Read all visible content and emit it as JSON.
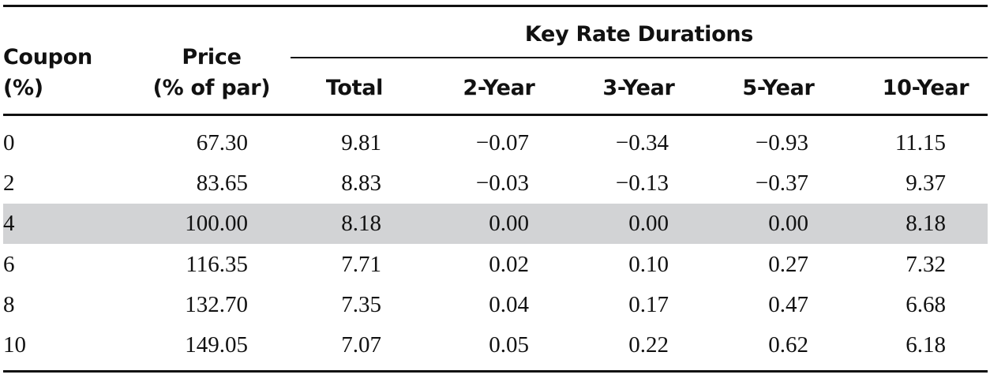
{
  "table": {
    "group_header": "Key Rate Durations",
    "columns": {
      "coupon": [
        "Coupon",
        "(%)"
      ],
      "price": [
        "Price",
        "(% of par)"
      ],
      "total": "Total",
      "y2": "2-Year",
      "y3": "3-Year",
      "y5": "5-Year",
      "y10": "10-Year"
    },
    "highlighted_row": 2,
    "highlight_color": "#d2d3d5",
    "rows": [
      {
        "coupon": "0",
        "price": "67.30",
        "total": "9.81",
        "y2": "−0.07",
        "y3": "−0.34",
        "y5": "−0.93",
        "y10": "11.15"
      },
      {
        "coupon": "2",
        "price": "83.65",
        "total": "8.83",
        "y2": "−0.03",
        "y3": "−0.13",
        "y5": "−0.37",
        "y10": "9.37"
      },
      {
        "coupon": "4",
        "price": "100.00",
        "total": "8.18",
        "y2": "0.00",
        "y3": "0.00",
        "y5": "0.00",
        "y10": "8.18"
      },
      {
        "coupon": "6",
        "price": "116.35",
        "total": "7.71",
        "y2": "0.02",
        "y3": "0.10",
        "y5": "0.27",
        "y10": "7.32"
      },
      {
        "coupon": "8",
        "price": "132.70",
        "total": "7.35",
        "y2": "0.04",
        "y3": "0.17",
        "y5": "0.47",
        "y10": "6.68"
      },
      {
        "coupon": "10",
        "price": "149.05",
        "total": "7.07",
        "y2": "0.05",
        "y3": "0.22",
        "y5": "0.62",
        "y10": "6.18"
      }
    ]
  }
}
